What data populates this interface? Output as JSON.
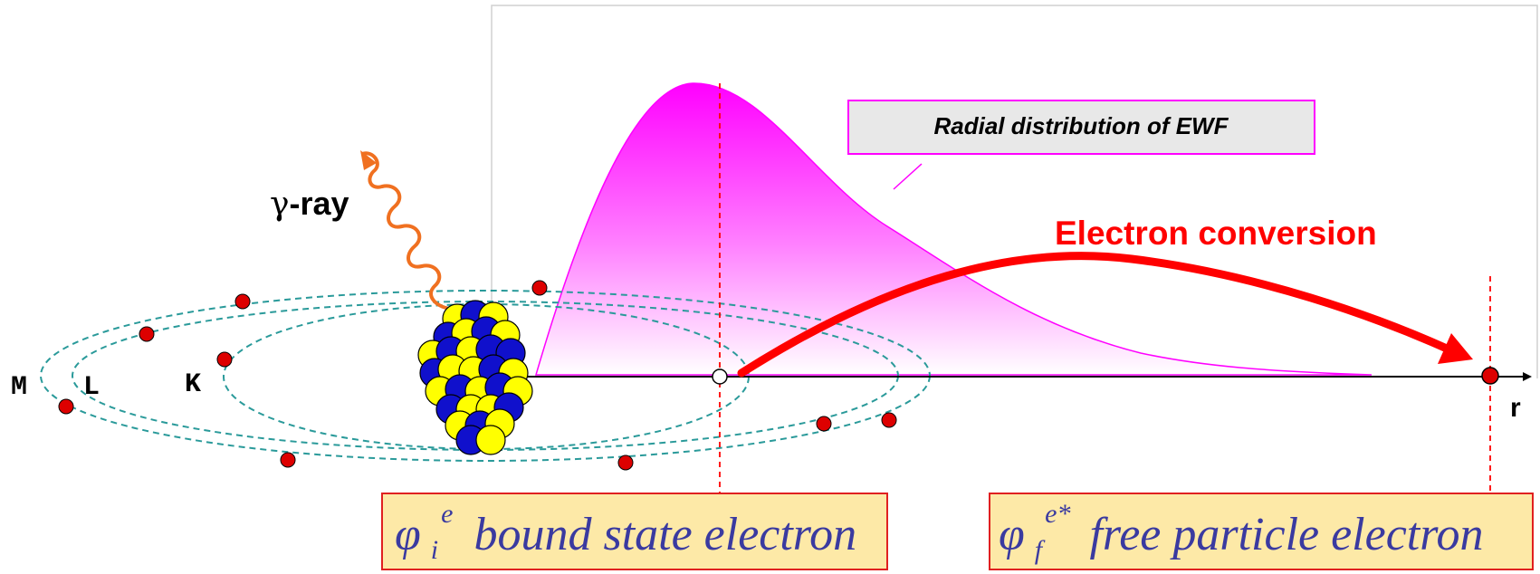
{
  "labels": {
    "gamma_prefix": "γ",
    "gamma_suffix": "-ray",
    "shell_m": "M",
    "shell_l": "L",
    "shell_k": "K",
    "axis_r": "r",
    "ewf_callout": "Radial distribution of EWF",
    "conversion": "Electron conversion"
  },
  "bound_state": {
    "symbol": "φ",
    "superscript": "e",
    "subscript": "i",
    "text": "bound state electron"
  },
  "free_particle": {
    "symbol": "φ",
    "superscript": "e*",
    "subscript": "f",
    "text": "free particle electron"
  },
  "colors": {
    "magenta": "#ff00ff",
    "red": "#ff0000",
    "electron_red": "#dd0000",
    "orbit_teal": "#2a9a9a",
    "gamma_orange": "#f07020",
    "box_fill": "#fde9a7",
    "box_border": "#e02020",
    "box_text": "#3a3aa0",
    "nucleon_blue": "#1010cc",
    "nucleon_yellow": "#ffff00",
    "callout_fill": "#e8e8e8"
  },
  "icons": {
    "nucleus": "nucleus-icon",
    "gamma": "gamma-wave-icon"
  }
}
